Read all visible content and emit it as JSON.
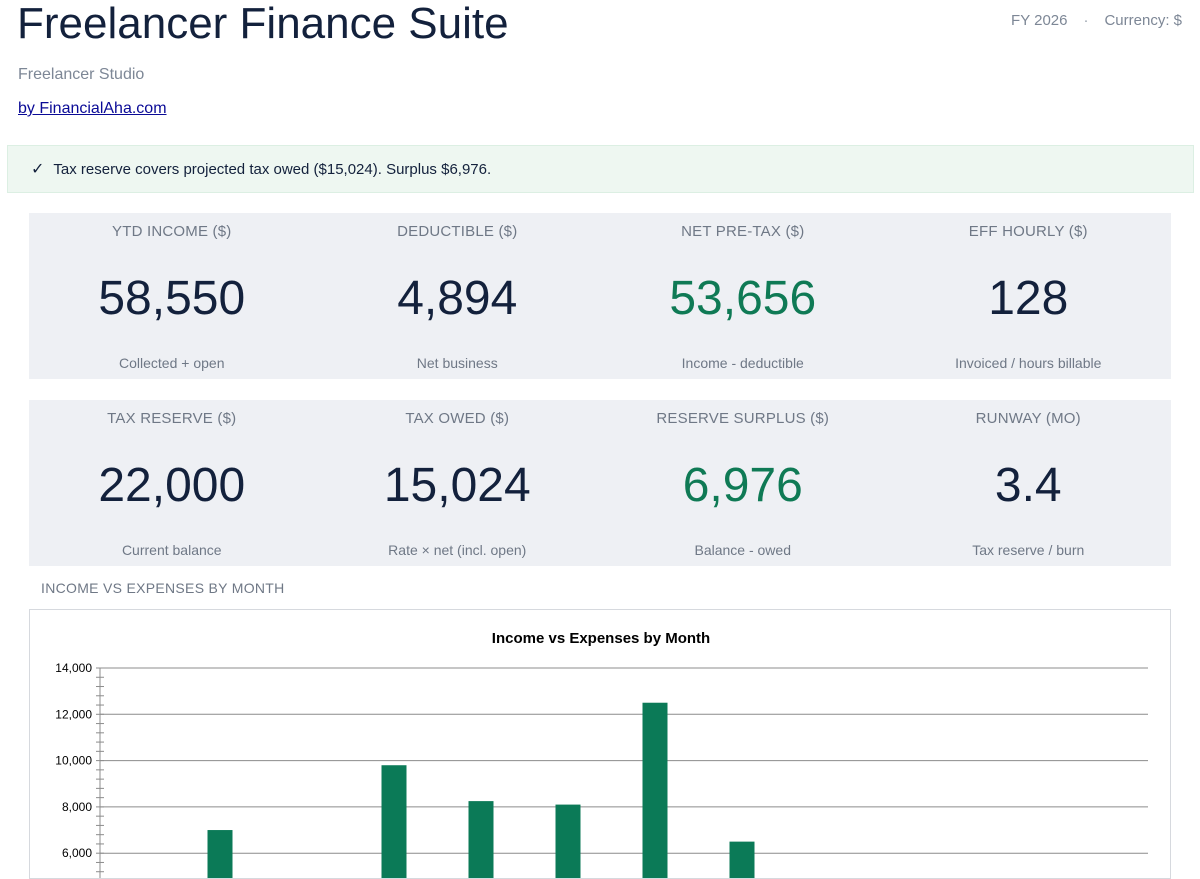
{
  "header": {
    "title": "Freelancer Finance Suite",
    "subtitle": "Freelancer Studio",
    "byline": "by FinancialAha.com",
    "fiscal_year": "FY 2026",
    "separator": "·",
    "currency": "Currency: $"
  },
  "alert": {
    "icon": "check-icon",
    "glyph": "✓",
    "text": "Tax reserve covers projected tax owed ($15,024). Surplus $6,976."
  },
  "kpis_row1": [
    {
      "label": "YTD INCOME ($)",
      "value": "58,550",
      "sub": "Collected + open",
      "color": "#13213c"
    },
    {
      "label": "DEDUCTIBLE ($)",
      "value": "4,894",
      "sub": "Net business",
      "color": "#13213c"
    },
    {
      "label": "NET PRE-TAX ($)",
      "value": "53,656",
      "sub": "Income - deductible",
      "color": "#0f7a55"
    },
    {
      "label": "EFF HOURLY ($)",
      "value": "128",
      "sub": "Invoiced / hours billable",
      "color": "#13213c"
    }
  ],
  "kpis_row2": [
    {
      "label": "TAX RESERVE ($)",
      "value": "22,000",
      "sub": "Current balance",
      "color": "#13213c"
    },
    {
      "label": "TAX OWED ($)",
      "value": "15,024",
      "sub": "Rate × net (incl. open)",
      "color": "#13213c"
    },
    {
      "label": "RESERVE SURPLUS ($)",
      "value": "6,976",
      "sub": "Balance - owed",
      "color": "#0f7a55"
    },
    {
      "label": "RUNWAY (MO)",
      "value": "3.4",
      "sub": "Tax reserve / burn",
      "color": "#13213c"
    }
  ],
  "section": {
    "chart_heading": "INCOME VS EXPENSES BY MONTH"
  },
  "chart_data": {
    "type": "bar",
    "title": "Income vs Expenses by Month",
    "xlabel": "",
    "ylabel": "",
    "y_ticks": [
      "6,000",
      "8,000",
      "10,000",
      "12,000",
      "14,000"
    ],
    "ylim": [
      6000,
      14000
    ],
    "series_color": "#0b7a57",
    "series": [
      {
        "name": "",
        "values": [
          null,
          7000,
          null,
          9800,
          8250,
          8100,
          12500,
          6500,
          null,
          null,
          null,
          null
        ]
      }
    ]
  }
}
